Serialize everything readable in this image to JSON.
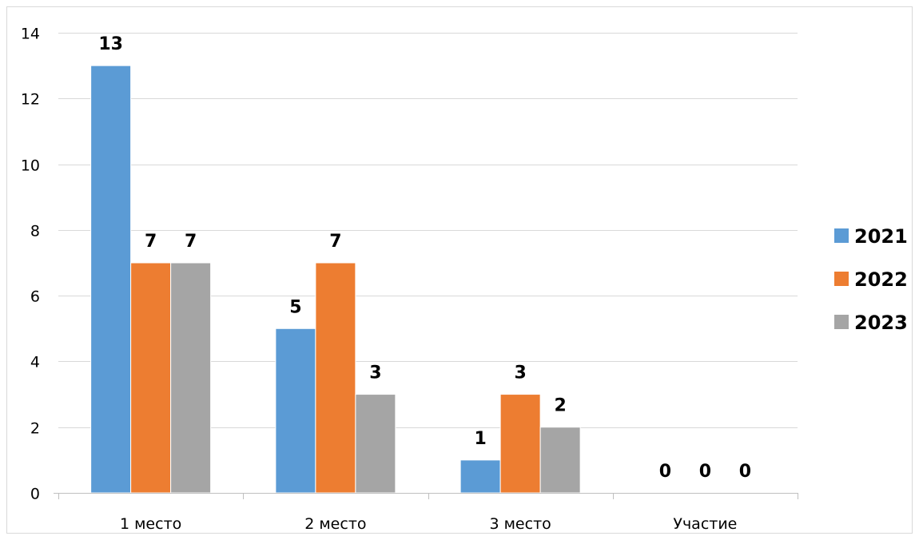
{
  "chart_data": {
    "type": "bar",
    "categories": [
      "1 место",
      "2 место",
      "3 место",
      "Участие"
    ],
    "series": [
      {
        "name": "2021",
        "values": [
          13,
          5,
          1,
          0
        ],
        "color": "#5B9BD5"
      },
      {
        "name": "2022",
        "values": [
          7,
          7,
          3,
          0
        ],
        "color": "#ED7D31"
      },
      {
        "name": "2023",
        "values": [
          7,
          3,
          2,
          0
        ],
        "color": "#A5A5A5"
      }
    ],
    "title": "",
    "xlabel": "",
    "ylabel": "",
    "ylim": [
      0,
      14
    ],
    "yticks": [
      0,
      2,
      4,
      6,
      8,
      10,
      12,
      14
    ],
    "grid": true,
    "legend_position": "right",
    "data_labels": true
  }
}
